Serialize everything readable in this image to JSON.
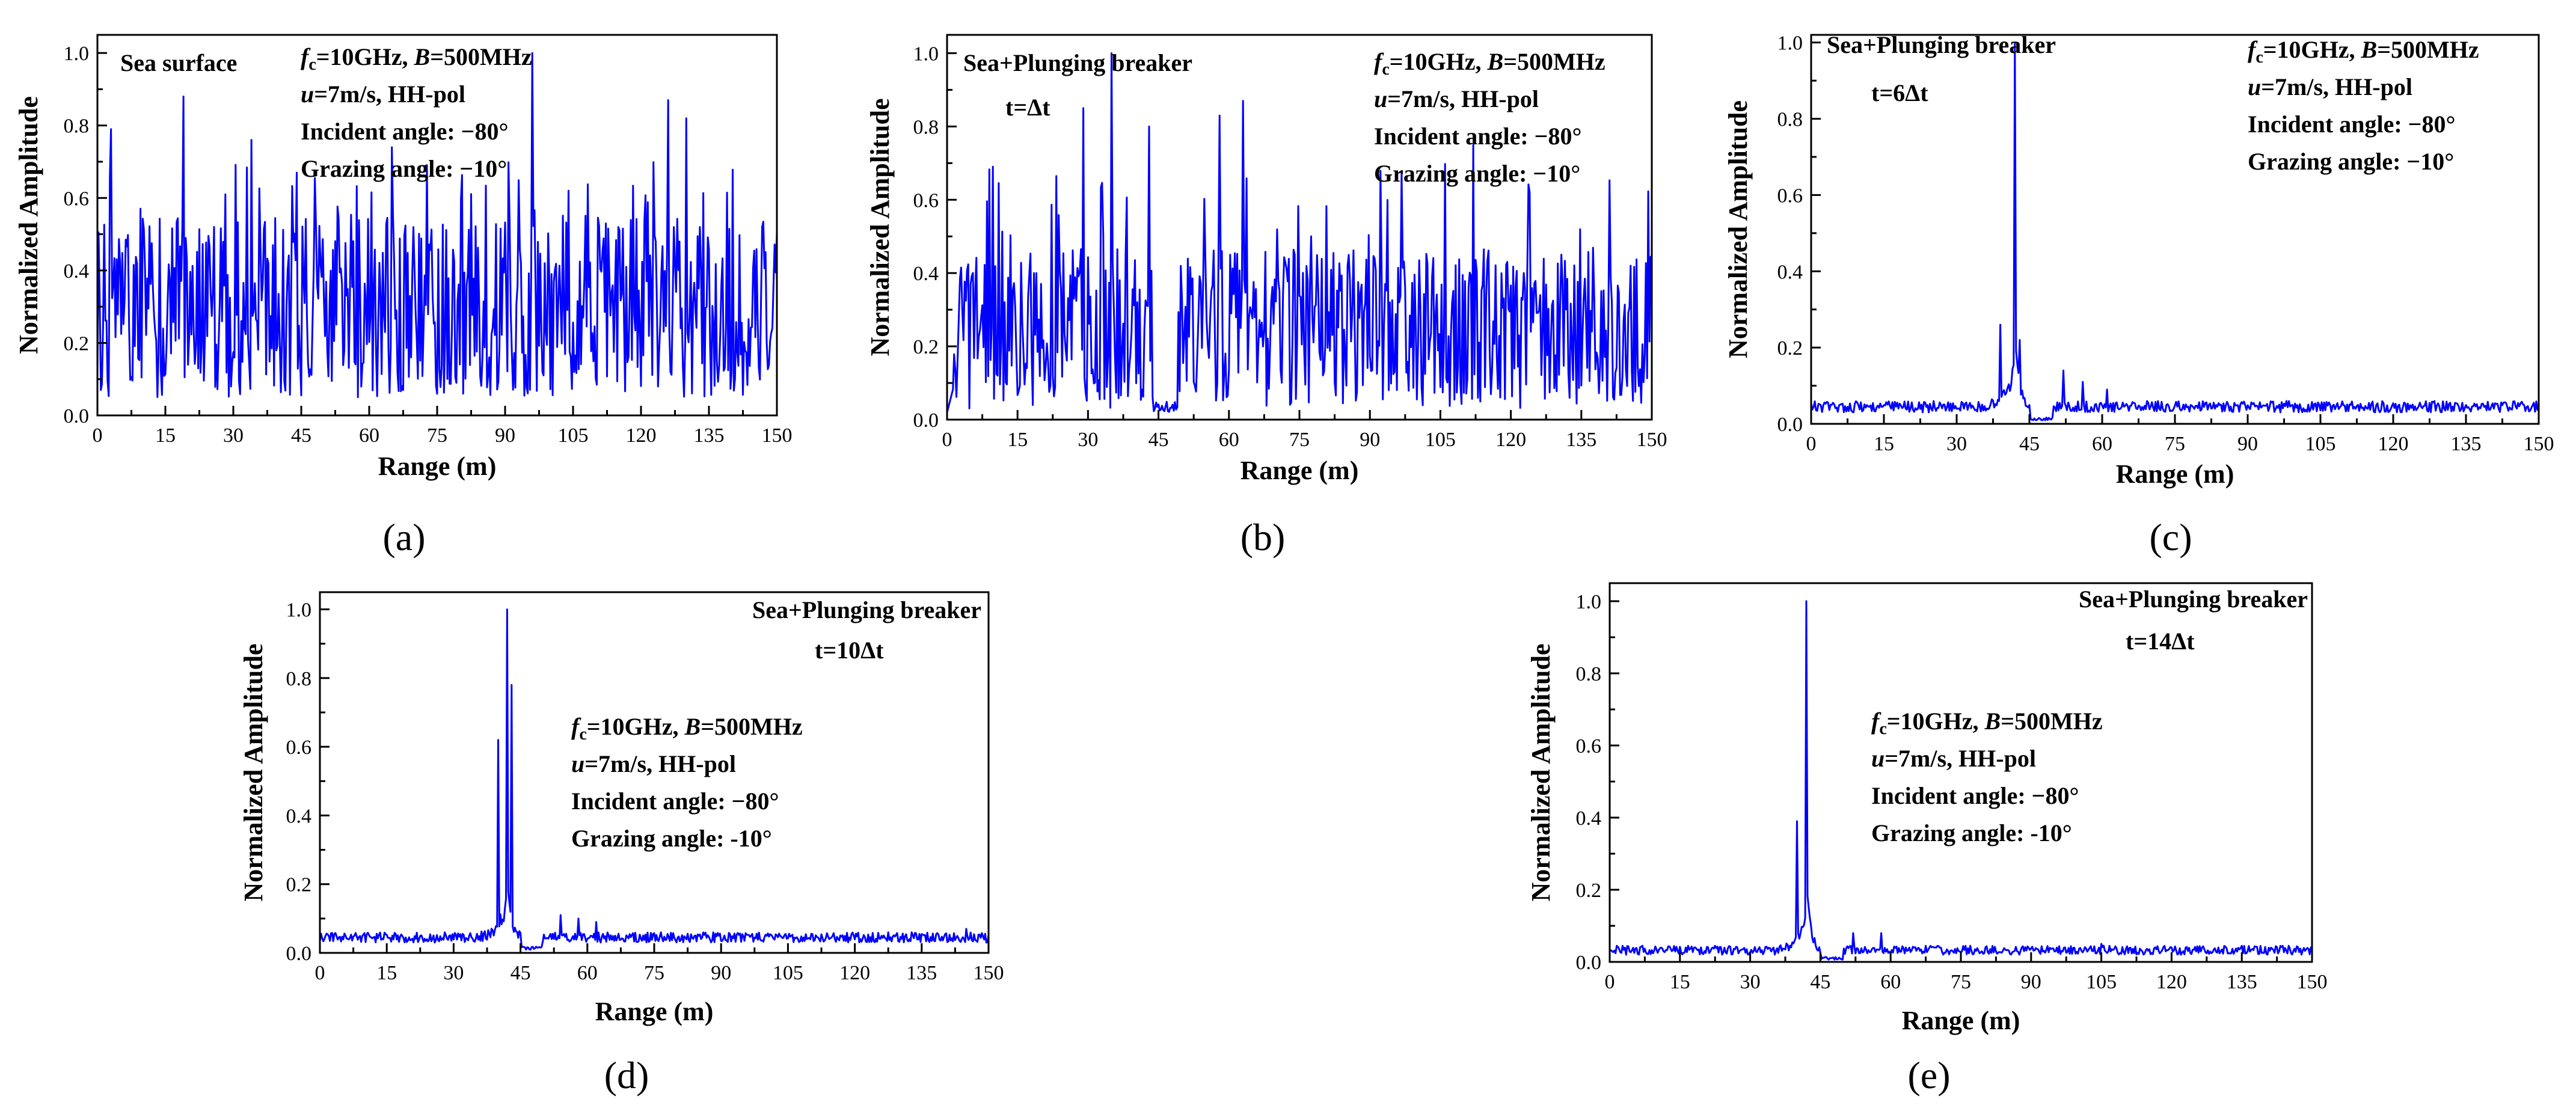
{
  "figure": {
    "panels": [
      {
        "label": "(a)",
        "title": "Sea surface",
        "time": "",
        "params": {
          "fc": "f",
          "fc_sub": "c",
          "fc_val": "=10GHz, ",
          "B": "B",
          "B_val": "=500MHz",
          "u": "u",
          "u_val": "=7m/s, HH-pol",
          "incident": "Incident angle: −80°",
          "grazing": "Grazing angle: −10°"
        }
      },
      {
        "label": "(b)",
        "title": "Sea+Plunging breaker",
        "time": "t=Δt",
        "params": {
          "fc": "f",
          "fc_sub": "c",
          "fc_val": "=10GHz, ",
          "B": "B",
          "B_val": "=500MHz",
          "u": "u",
          "u_val": "=7m/s, HH-pol",
          "incident": "Incident angle: −80°",
          "grazing": "Grazing angle: −10°"
        }
      },
      {
        "label": "(c)",
        "title": "Sea+Plunging breaker",
        "time": "t=6Δt",
        "params": {
          "fc": "f",
          "fc_sub": "c",
          "fc_val": "=10GHz, ",
          "B": "B",
          "B_val": "=500MHz",
          "u": "u",
          "u_val": "=7m/s, HH-pol",
          "incident": "Incident angle: −80°",
          "grazing": "Grazing angle: −10°"
        }
      },
      {
        "label": "(d)",
        "title": "Sea+Plunging breaker",
        "time": "t=10Δt",
        "params": {
          "fc": "f",
          "fc_sub": "c",
          "fc_val": "=10GHz, ",
          "B": "B",
          "B_val": "=500MHz",
          "u": "u",
          "u_val": "=7m/s, HH-pol",
          "incident": "Incident angle: −80°",
          "grazing": "Grazing angle: -10°"
        }
      },
      {
        "label": "(e)",
        "title": "Sea+Plunging breaker",
        "time": "t=14Δt",
        "params": {
          "fc": "f",
          "fc_sub": "c",
          "fc_val": "=10GHz, ",
          "B": "B",
          "B_val": "=500MHz",
          "u": "u",
          "u_val": "=7m/s, HH-pol",
          "incident": "Incident angle: −80°",
          "grazing": "Grazing angle: -10°"
        }
      }
    ]
  },
  "chart_data": [
    {
      "type": "line",
      "panel": "(a)",
      "title": "Sea surface",
      "xlabel": "Range (m)",
      "ylabel": "Normalized Amplitude",
      "xlim": [
        0,
        150
      ],
      "ylim": [
        0,
        1.05
      ],
      "xticks": [
        0,
        15,
        30,
        45,
        60,
        75,
        90,
        105,
        120,
        135,
        150
      ],
      "yticks": [
        0.0,
        0.2,
        0.4,
        0.6,
        0.8,
        1.0
      ],
      "yticklabels": [
        "0.0",
        "0.2",
        "0.4",
        "0.6",
        "0.8",
        "1.0"
      ],
      "line_color": "#0000ff",
      "series": [
        {
          "name": "Sea surface",
          "model": "noise",
          "baseline": 0.3,
          "spread": 0.25,
          "peak_x": 96,
          "peak_y": 1.0,
          "highlights": [
            [
              3,
              0.79
            ],
            [
              19,
              0.88
            ],
            [
              34,
              0.76
            ],
            [
              65,
              0.74
            ],
            [
              96,
              1.0
            ],
            [
              126,
              0.87
            ],
            [
              130,
              0.82
            ],
            [
              104,
              0.62
            ]
          ]
        }
      ]
    },
    {
      "type": "line",
      "panel": "(b)",
      "title": "Sea+Plunging breaker",
      "xlabel": "Range (m)",
      "ylabel": "Normalized Amplitude",
      "xlim": [
        0,
        150
      ],
      "ylim": [
        0,
        1.05
      ],
      "xticks": [
        0,
        15,
        30,
        45,
        60,
        75,
        90,
        105,
        120,
        135,
        150
      ],
      "yticks": [
        0.0,
        0.2,
        0.4,
        0.6,
        0.8,
        1.0
      ],
      "yticklabels": [
        "0.0",
        "0.2",
        "0.4",
        "0.6",
        "0.8",
        "1.0"
      ],
      "line_color": "#0000ff",
      "series": [
        {
          "name": "t=Δt",
          "model": "noise_gap",
          "baseline": 0.25,
          "spread": 0.22,
          "gap": [
            44,
            49
          ],
          "peak_x": 35,
          "peak_y": 1.0,
          "highlights": [
            [
              29,
              0.85
            ],
            [
              35,
              1.0
            ],
            [
              43,
              0.8
            ],
            [
              58,
              0.83
            ],
            [
              63,
              0.87
            ],
            [
              112,
              0.75
            ],
            [
              124,
              0.62
            ]
          ]
        }
      ]
    },
    {
      "type": "line",
      "panel": "(c)",
      "title": "Sea+Plunging breaker",
      "xlabel": "Range (m)",
      "ylabel": "Normalized Amplitude",
      "xlim": [
        0,
        150
      ],
      "ylim": [
        0,
        1.02
      ],
      "xticks": [
        0,
        15,
        30,
        45,
        60,
        75,
        90,
        105,
        120,
        135,
        150
      ],
      "yticks": [
        0.0,
        0.2,
        0.4,
        0.6,
        0.8,
        1.0
      ],
      "yticklabels": [
        "0.0",
        "0.2",
        "0.4",
        "0.6",
        "0.8",
        "1.0"
      ],
      "line_color": "#0000ff",
      "series": [
        {
          "name": "t=6Δt",
          "model": "peak",
          "baseline": 0.03,
          "spread": 0.03,
          "peak_x": 42,
          "peak_y": 1.0,
          "highlights": [
            [
              39,
              0.26
            ],
            [
              42,
              1.0
            ],
            [
              43,
              0.22
            ],
            [
              52,
              0.14
            ],
            [
              56,
              0.11
            ],
            [
              61,
              0.09
            ]
          ]
        }
      ]
    },
    {
      "type": "line",
      "panel": "(d)",
      "title": "Sea+Plunging breaker",
      "xlabel": "Range (m)",
      "ylabel": "Normalized Amplitude",
      "xlim": [
        0,
        150
      ],
      "ylim": [
        0,
        1.05
      ],
      "xticks": [
        0,
        15,
        30,
        45,
        60,
        75,
        90,
        105,
        120,
        135,
        150
      ],
      "yticks": [
        0.0,
        0.2,
        0.4,
        0.6,
        0.8,
        1.0
      ],
      "yticklabels": [
        "0.0",
        "0.2",
        "0.4",
        "0.6",
        "0.8",
        "1.0"
      ],
      "line_color": "#0000ff",
      "series": [
        {
          "name": "t=10Δt",
          "model": "peak",
          "baseline": 0.03,
          "spread": 0.03,
          "peak_x": 42,
          "peak_y": 1.0,
          "highlights": [
            [
              40,
              0.62
            ],
            [
              42,
              1.0
            ],
            [
              43,
              0.78
            ],
            [
              54,
              0.11
            ],
            [
              58,
              0.1
            ],
            [
              62,
              0.09
            ],
            [
              145,
              0.07
            ]
          ]
        }
      ]
    },
    {
      "type": "line",
      "panel": "(e)",
      "title": "Sea+Plunging breaker",
      "xlabel": "Range (m)",
      "ylabel": "Normalized Amplitude",
      "xlim": [
        0,
        150
      ],
      "ylim": [
        0,
        1.05
      ],
      "xticks": [
        0,
        15,
        30,
        45,
        60,
        75,
        90,
        105,
        120,
        135,
        150
      ],
      "yticks": [
        0.0,
        0.2,
        0.4,
        0.6,
        0.8,
        1.0
      ],
      "yticklabels": [
        "0.0",
        "0.2",
        "0.4",
        "0.6",
        "0.8",
        "1.0"
      ],
      "line_color": "#0000ff",
      "series": [
        {
          "name": "t=14Δt",
          "model": "peak",
          "baseline": 0.02,
          "spread": 0.025,
          "peak_x": 42,
          "peak_y": 1.0,
          "highlights": [
            [
              40,
              0.39
            ],
            [
              42,
              1.0
            ],
            [
              52,
              0.08
            ],
            [
              58,
              0.08
            ],
            [
              105,
              0.05
            ],
            [
              130,
              0.04
            ]
          ]
        }
      ]
    }
  ]
}
